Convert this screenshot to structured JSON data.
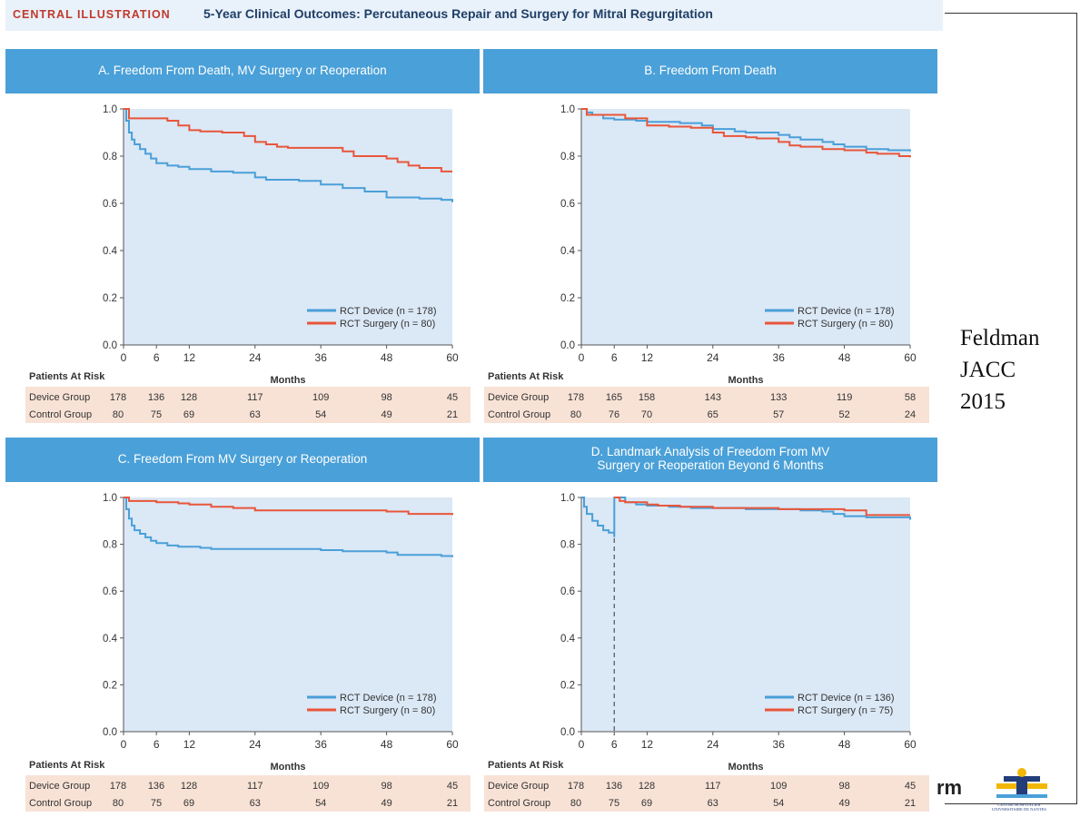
{
  "header": {
    "label": "CENTRAL ILLUSTRATION",
    "title": "5-Year Clinical Outcomes: Percutaneous Repair and Surgery for Mitral Regurgitation"
  },
  "citation": {
    "line1": "Feldman",
    "line2": "JACC",
    "line3": "2015"
  },
  "logos": {
    "partial_text": "rm",
    "chu_line1": "CENTRE HOSPITALIER",
    "chu_line2": "UNIVERSITAIRE DE NANTES"
  },
  "colors": {
    "device": "#4a9fd8",
    "surgery": "#e8563a",
    "plot_bg": "#dbe8f6",
    "band": "#4aa0d8",
    "risk_bg": "#f8e2d6"
  },
  "risk_table": {
    "title": "Patients At Risk",
    "row_labels": [
      "Device Group",
      "Control Group"
    ]
  },
  "chart_data": [
    {
      "type": "line",
      "title": "A. Freedom From Death, MV Surgery or Reoperation",
      "xlabel": "Months",
      "xlim": [
        0,
        60
      ],
      "ylim": [
        0,
        1
      ],
      "xticks": [
        0,
        6,
        12,
        24,
        36,
        48,
        60
      ],
      "yticks": [
        "0.0",
        "0.2",
        "0.4",
        "0.6",
        "0.8",
        "1.0"
      ],
      "legend_position": "bottom-right",
      "series": [
        {
          "name": "RCT Device (n = 178)",
          "color": "#4a9fd8",
          "points": [
            [
              0,
              1.0
            ],
            [
              0.5,
              0.95
            ],
            [
              1,
              0.9
            ],
            [
              1.5,
              0.87
            ],
            [
              2,
              0.85
            ],
            [
              3,
              0.83
            ],
            [
              4,
              0.81
            ],
            [
              5,
              0.79
            ],
            [
              6,
              0.77
            ],
            [
              8,
              0.76
            ],
            [
              10,
              0.755
            ],
            [
              12,
              0.745
            ],
            [
              16,
              0.735
            ],
            [
              20,
              0.73
            ],
            [
              24,
              0.71
            ],
            [
              26,
              0.7
            ],
            [
              32,
              0.695
            ],
            [
              36,
              0.68
            ],
            [
              40,
              0.665
            ],
            [
              44,
              0.65
            ],
            [
              48,
              0.625
            ],
            [
              54,
              0.62
            ],
            [
              58,
              0.615
            ],
            [
              60,
              0.605
            ]
          ]
        },
        {
          "name": "RCT Surgery (n = 80)",
          "color": "#e8563a",
          "points": [
            [
              0,
              1.0
            ],
            [
              1,
              0.96
            ],
            [
              8,
              0.95
            ],
            [
              10,
              0.93
            ],
            [
              12,
              0.91
            ],
            [
              14,
              0.905
            ],
            [
              18,
              0.9
            ],
            [
              22,
              0.885
            ],
            [
              24,
              0.86
            ],
            [
              26,
              0.85
            ],
            [
              28,
              0.84
            ],
            [
              30,
              0.835
            ],
            [
              40,
              0.82
            ],
            [
              42,
              0.8
            ],
            [
              48,
              0.79
            ],
            [
              50,
              0.775
            ],
            [
              52,
              0.76
            ],
            [
              54,
              0.75
            ],
            [
              58,
              0.735
            ],
            [
              60,
              0.735
            ]
          ]
        }
      ],
      "risk": {
        "columns": [
          "178 136 128",
          "117",
          "109",
          "98",
          "45"
        ],
        "device": [
          "178",
          "136",
          "128",
          "117",
          "109",
          "98",
          "45"
        ],
        "control": [
          "80",
          "75",
          "69",
          "63",
          "54",
          "49",
          "21"
        ]
      }
    },
    {
      "type": "line",
      "title": "B. Freedom From Death",
      "xlabel": "Months",
      "xlim": [
        0,
        60
      ],
      "ylim": [
        0,
        1
      ],
      "xticks": [
        0,
        6,
        12,
        24,
        36,
        48,
        60
      ],
      "yticks": [
        "0.0",
        "0.2",
        "0.4",
        "0.6",
        "0.8",
        "1.0"
      ],
      "legend_position": "bottom-right",
      "series": [
        {
          "name": "RCT Device (n = 178)",
          "color": "#4a9fd8",
          "points": [
            [
              0,
              1.0
            ],
            [
              1,
              0.985
            ],
            [
              2,
              0.975
            ],
            [
              4,
              0.96
            ],
            [
              6,
              0.955
            ],
            [
              10,
              0.95
            ],
            [
              12,
              0.945
            ],
            [
              18,
              0.94
            ],
            [
              22,
              0.93
            ],
            [
              24,
              0.915
            ],
            [
              28,
              0.905
            ],
            [
              30,
              0.9
            ],
            [
              36,
              0.89
            ],
            [
              38,
              0.88
            ],
            [
              40,
              0.87
            ],
            [
              44,
              0.86
            ],
            [
              46,
              0.85
            ],
            [
              48,
              0.84
            ],
            [
              52,
              0.83
            ],
            [
              56,
              0.825
            ],
            [
              60,
              0.82
            ]
          ]
        },
        {
          "name": "RCT Surgery (n = 80)",
          "color": "#e8563a",
          "points": [
            [
              0,
              1.0
            ],
            [
              1,
              0.975
            ],
            [
              4,
              0.975
            ],
            [
              8,
              0.96
            ],
            [
              12,
              0.93
            ],
            [
              16,
              0.925
            ],
            [
              20,
              0.92
            ],
            [
              24,
              0.9
            ],
            [
              26,
              0.885
            ],
            [
              30,
              0.88
            ],
            [
              32,
              0.875
            ],
            [
              36,
              0.86
            ],
            [
              38,
              0.845
            ],
            [
              40,
              0.84
            ],
            [
              44,
              0.83
            ],
            [
              48,
              0.825
            ],
            [
              52,
              0.815
            ],
            [
              54,
              0.81
            ],
            [
              58,
              0.8
            ],
            [
              60,
              0.795
            ]
          ]
        }
      ],
      "risk": {
        "device": [
          "178",
          "165",
          "158",
          "143",
          "133",
          "119",
          "58"
        ],
        "control": [
          "80",
          "76",
          "70",
          "65",
          "57",
          "52",
          "24"
        ]
      }
    },
    {
      "type": "line",
      "title": "C. Freedom From MV Surgery or Reoperation",
      "xlabel": "Months",
      "xlim": [
        0,
        60
      ],
      "ylim": [
        0,
        1
      ],
      "xticks": [
        0,
        6,
        12,
        24,
        36,
        48,
        60
      ],
      "yticks": [
        "0.0",
        "0.2",
        "0.4",
        "0.6",
        "0.8",
        "1.0"
      ],
      "legend_position": "bottom-right",
      "series": [
        {
          "name": "RCT Device (n = 178)",
          "color": "#4a9fd8",
          "points": [
            [
              0,
              1.0
            ],
            [
              0.5,
              0.95
            ],
            [
              1,
              0.91
            ],
            [
              1.5,
              0.88
            ],
            [
              2,
              0.86
            ],
            [
              3,
              0.845
            ],
            [
              4,
              0.83
            ],
            [
              5,
              0.815
            ],
            [
              6,
              0.805
            ],
            [
              8,
              0.795
            ],
            [
              10,
              0.79
            ],
            [
              14,
              0.785
            ],
            [
              16,
              0.78
            ],
            [
              24,
              0.78
            ],
            [
              36,
              0.775
            ],
            [
              40,
              0.77
            ],
            [
              48,
              0.765
            ],
            [
              50,
              0.755
            ],
            [
              58,
              0.75
            ],
            [
              60,
              0.745
            ]
          ]
        },
        {
          "name": "RCT Surgery (n = 80)",
          "color": "#e8563a",
          "points": [
            [
              0,
              1.0
            ],
            [
              1,
              0.985
            ],
            [
              6,
              0.98
            ],
            [
              10,
              0.975
            ],
            [
              12,
              0.97
            ],
            [
              16,
              0.96
            ],
            [
              20,
              0.955
            ],
            [
              24,
              0.945
            ],
            [
              36,
              0.945
            ],
            [
              48,
              0.94
            ],
            [
              52,
              0.93
            ],
            [
              60,
              0.925
            ]
          ]
        }
      ],
      "risk": {
        "device": [
          "178",
          "136",
          "128",
          "117",
          "109",
          "98",
          "45"
        ],
        "control": [
          "80",
          "75",
          "69",
          "63",
          "54",
          "49",
          "21"
        ]
      }
    },
    {
      "type": "line",
      "title": "D. Landmark Analysis of Freedom From MV Surgery or Reoperation Beyond 6 Months",
      "xlabel": "Months",
      "xlim": [
        0,
        60
      ],
      "ylim": [
        0,
        1
      ],
      "xticks": [
        0,
        6,
        12,
        24,
        36,
        48,
        60
      ],
      "yticks": [
        "0.0",
        "0.2",
        "0.4",
        "0.6",
        "0.8",
        "1.0"
      ],
      "legend_position": "bottom-right",
      "landmark_x": 6,
      "series": [
        {
          "name": "RCT Device (n = 136)",
          "color": "#4a9fd8",
          "points": [
            [
              0,
              1.0
            ],
            [
              0.5,
              0.96
            ],
            [
              1,
              0.93
            ],
            [
              2,
              0.9
            ],
            [
              3,
              0.88
            ],
            [
              4,
              0.86
            ],
            [
              5,
              0.85
            ],
            [
              6,
              0.835
            ],
            [
              6.01,
              1.0
            ],
            [
              8,
              0.98
            ],
            [
              10,
              0.97
            ],
            [
              12,
              0.965
            ],
            [
              16,
              0.96
            ],
            [
              20,
              0.955
            ],
            [
              24,
              0.955
            ],
            [
              30,
              0.95
            ],
            [
              36,
              0.95
            ],
            [
              40,
              0.945
            ],
            [
              44,
              0.94
            ],
            [
              46,
              0.93
            ],
            [
              48,
              0.92
            ],
            [
              52,
              0.915
            ],
            [
              60,
              0.905
            ]
          ]
        },
        {
          "name": "RCT Surgery (n = 75)",
          "color": "#e8563a",
          "points": [
            [
              6,
              1.0
            ],
            [
              7,
              0.985
            ],
            [
              8,
              0.98
            ],
            [
              12,
              0.97
            ],
            [
              14,
              0.965
            ],
            [
              18,
              0.96
            ],
            [
              24,
              0.955
            ],
            [
              30,
              0.955
            ],
            [
              36,
              0.95
            ],
            [
              48,
              0.945
            ],
            [
              52,
              0.925
            ],
            [
              60,
              0.925
            ]
          ]
        }
      ],
      "risk": {
        "device": [
          "178",
          "136",
          "128",
          "117",
          "109",
          "98",
          "45"
        ],
        "control": [
          "80",
          "75",
          "69",
          "63",
          "54",
          "49",
          "21"
        ]
      }
    }
  ]
}
